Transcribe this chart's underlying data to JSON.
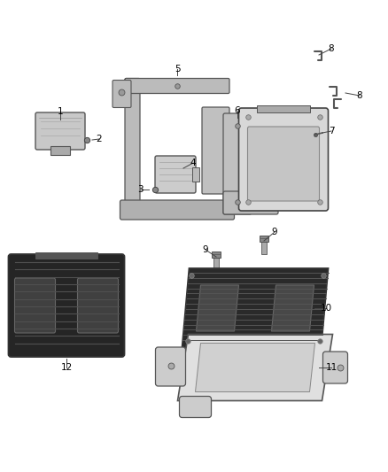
{
  "bg_color": "#ffffff",
  "line_color": "#444444",
  "label_color": "#000000",
  "figsize": [
    4.38,
    5.33
  ],
  "dpi": 100
}
